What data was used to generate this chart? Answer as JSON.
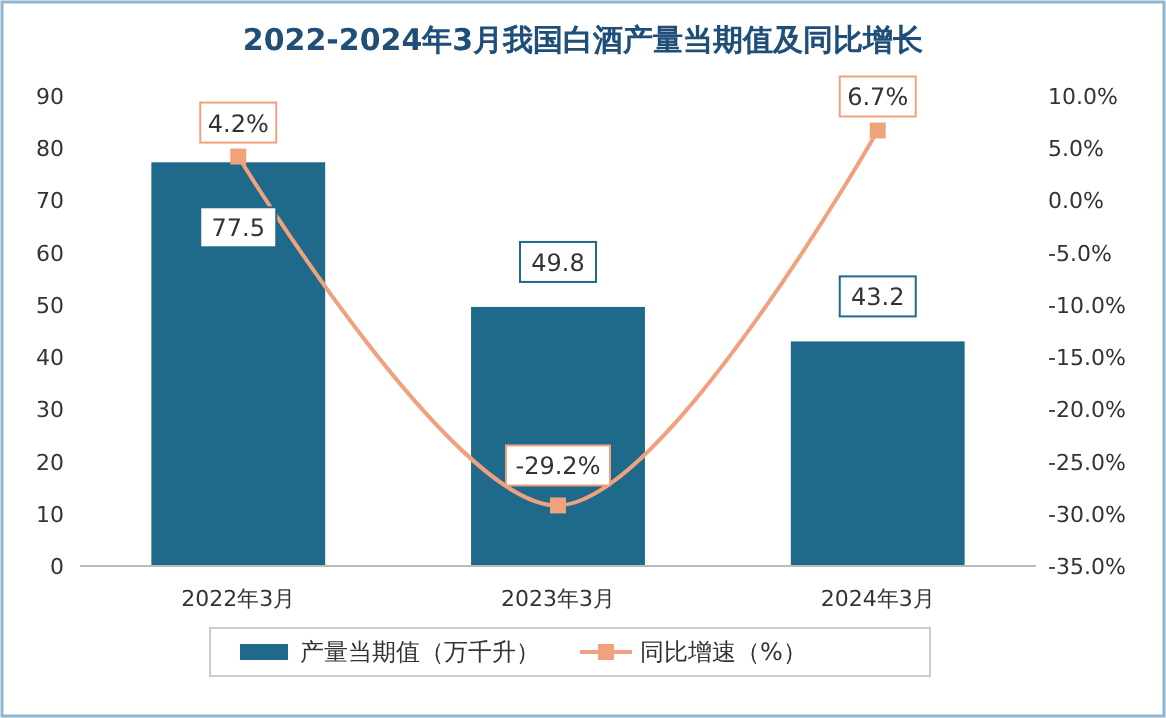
{
  "chart_data": {
    "type": "bar",
    "title": "2022-2024年3月我国白酒产量当期值及同比增长",
    "categories": [
      "2022年3月",
      "2023年3月",
      "2024年3月"
    ],
    "series": [
      {
        "name": "产量当期值（万千升）",
        "color": "#1f6a8a",
        "values": [
          77.5,
          49.8,
          43.2
        ],
        "value_labels": [
          "77.5",
          "49.8",
          "43.2"
        ]
      },
      {
        "name": "同比增速（%）",
        "type": "line",
        "axis": "y2",
        "color": "#f0a27e",
        "marker": "square",
        "values": [
          4.2,
          -29.2,
          6.7
        ],
        "value_labels": [
          "4.2%",
          "-29.2%",
          "6.7%"
        ]
      }
    ],
    "ylim": [
      0,
      90
    ],
    "yticks": [
      0,
      10,
      20,
      30,
      40,
      50,
      60,
      70,
      80,
      90
    ],
    "y2lim": [
      -35,
      10
    ],
    "y2ticks": [
      {
        "value": -35,
        "label": "-35.0%"
      },
      {
        "value": -30,
        "label": "-30.0%"
      },
      {
        "value": -25,
        "label": "-25.0%"
      },
      {
        "value": -20,
        "label": "-20.0%"
      },
      {
        "value": -15,
        "label": "-15.0%"
      },
      {
        "value": -10,
        "label": "-10.0%"
      },
      {
        "value": -5,
        "label": "-5.0%"
      },
      {
        "value": 0,
        "label": "0.0%"
      },
      {
        "value": 5,
        "label": "5.0%"
      },
      {
        "value": 10,
        "label": "10.0%"
      }
    ],
    "grid": false,
    "legend": "bottom"
  }
}
